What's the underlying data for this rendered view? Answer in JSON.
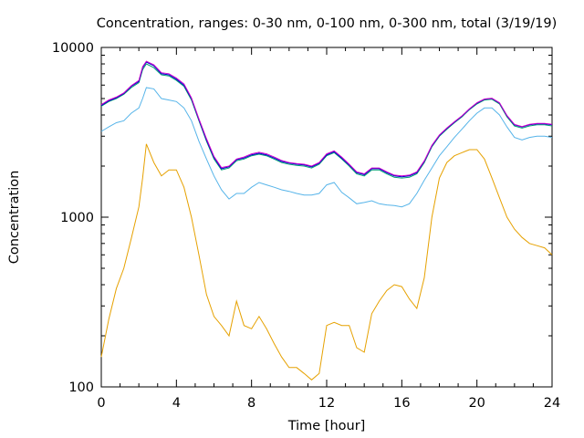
{
  "chart_data": {
    "type": "line",
    "title": "Concentration, ranges: 0-30 nm, 0-100 nm, 0-300 nm, total (3/19/19)",
    "xlabel": "Time [hour]",
    "ylabel": "Concentration",
    "xlim": [
      0,
      24
    ],
    "ylim": [
      100,
      10000
    ],
    "yscale": "log",
    "grid": false,
    "legend": "none",
    "x_ticks": [
      0,
      4,
      8,
      12,
      16,
      20,
      24
    ],
    "x_tick_labels": [
      "0",
      "4",
      "8",
      "12",
      "16",
      "20",
      "24"
    ],
    "y_ticks": [
      100,
      1000,
      10000
    ],
    "y_tick_labels": [
      "100",
      "1000",
      "10000"
    ],
    "x": [
      0,
      0.4,
      0.8,
      1.2,
      1.6,
      2.0,
      2.2,
      2.4,
      2.8,
      3.2,
      3.6,
      4.0,
      4.4,
      4.8,
      5.2,
      5.6,
      6.0,
      6.4,
      6.8,
      7.2,
      7.6,
      8.0,
      8.4,
      8.8,
      9.2,
      9.6,
      10.0,
      10.4,
      10.8,
      11.2,
      11.6,
      12.0,
      12.4,
      12.8,
      13.2,
      13.6,
      14.0,
      14.4,
      14.8,
      15.2,
      15.6,
      16.0,
      16.4,
      16.8,
      17.2,
      17.6,
      18.0,
      18.4,
      18.8,
      19.2,
      19.6,
      20.0,
      20.4,
      20.8,
      21.2,
      21.6,
      22.0,
      22.4,
      22.8,
      23.2,
      23.6,
      24.0
    ],
    "series": [
      {
        "color": "#e6a100",
        "values": [
          150,
          250,
          380,
          500,
          750,
          1150,
          1700,
          2700,
          2100,
          1750,
          1900,
          1900,
          1500,
          1000,
          600,
          350,
          260,
          230,
          200,
          320,
          230,
          220,
          260,
          220,
          180,
          150,
          130,
          130,
          120,
          110,
          120,
          230,
          240,
          230,
          230,
          170,
          160,
          270,
          320,
          370,
          400,
          390,
          330,
          290,
          440,
          1000,
          1700,
          2100,
          2300,
          2400,
          2500,
          2500,
          2200,
          1700,
          1300,
          1000,
          850,
          760,
          700,
          680,
          660,
          600
        ]
      },
      {
        "color": "#56b4e9",
        "values": [
          3200,
          3400,
          3600,
          3700,
          4100,
          4400,
          5000,
          5800,
          5700,
          5000,
          4900,
          4800,
          4400,
          3700,
          2800,
          2200,
          1750,
          1450,
          1280,
          1380,
          1380,
          1500,
          1600,
          1550,
          1500,
          1450,
          1420,
          1380,
          1350,
          1350,
          1380,
          1550,
          1600,
          1400,
          1300,
          1200,
          1220,
          1250,
          1200,
          1180,
          1170,
          1150,
          1200,
          1380,
          1650,
          1950,
          2300,
          2600,
          2950,
          3300,
          3700,
          4100,
          4400,
          4400,
          4000,
          3400,
          2950,
          2850,
          2950,
          3000,
          3000,
          2950
        ]
      },
      {
        "color": "#009e73",
        "values": [
          4500,
          4800,
          5000,
          5300,
          5800,
          6200,
          7400,
          8000,
          7600,
          6900,
          6800,
          6400,
          5900,
          4900,
          3700,
          2800,
          2200,
          1900,
          1950,
          2150,
          2200,
          2300,
          2350,
          2300,
          2200,
          2100,
          2050,
          2020,
          2000,
          1950,
          2050,
          2300,
          2400,
          2200,
          2000,
          1800,
          1750,
          1900,
          1900,
          1800,
          1720,
          1700,
          1720,
          1800,
          2100,
          2600,
          3000,
          3300,
          3600,
          3900,
          4300,
          4650,
          4900,
          4950,
          4650,
          3900,
          3450,
          3350,
          3450,
          3500,
          3500,
          3450
        ]
      },
      {
        "color": "#0000cc",
        "values": [
          4550,
          4850,
          5050,
          5350,
          5900,
          6300,
          7600,
          8200,
          7800,
          7000,
          6900,
          6500,
          6000,
          5000,
          3750,
          2850,
          2250,
          1930,
          1980,
          2180,
          2230,
          2330,
          2380,
          2330,
          2230,
          2130,
          2080,
          2050,
          2030,
          1980,
          2080,
          2330,
          2430,
          2230,
          2030,
          1830,
          1780,
          1930,
          1930,
          1830,
          1750,
          1730,
          1750,
          1830,
          2130,
          2630,
          3030,
          3330,
          3630,
          3930,
          4330,
          4700,
          4950,
          5000,
          4700,
          3950,
          3500,
          3400,
          3500,
          3550,
          3550,
          3500
        ]
      },
      {
        "color": "#cc00cc",
        "values": [
          4600,
          4900,
          5100,
          5400,
          5950,
          6400,
          7700,
          8300,
          7900,
          7100,
          7000,
          6600,
          6100,
          5050,
          3800,
          2900,
          2280,
          1960,
          2000,
          2200,
          2260,
          2360,
          2410,
          2360,
          2260,
          2160,
          2100,
          2070,
          2050,
          2000,
          2100,
          2360,
          2460,
          2260,
          2050,
          1850,
          1800,
          1950,
          1950,
          1850,
          1770,
          1750,
          1770,
          1850,
          2150,
          2650,
          3050,
          3350,
          3650,
          3950,
          4350,
          4720,
          4970,
          5020,
          4720,
          3970,
          3520,
          3420,
          3520,
          3570,
          3570,
          3520
        ]
      }
    ]
  }
}
